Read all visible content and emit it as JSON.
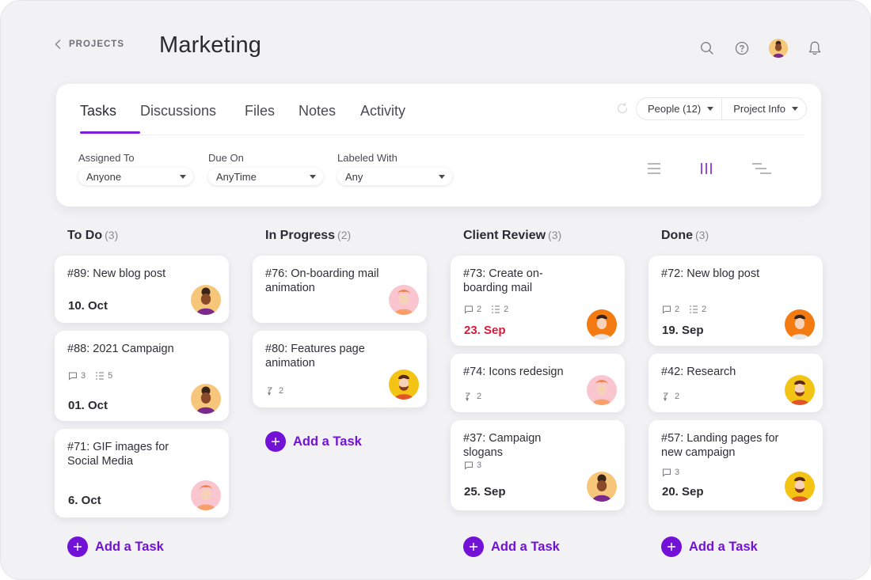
{
  "colors": {
    "accent": "#7212d6",
    "overdue": "#d7193a"
  },
  "header": {
    "back_label": "PROJECTS",
    "title": "Marketing",
    "icons": [
      "search-icon",
      "help-icon",
      "user-avatar",
      "bell-icon"
    ]
  },
  "tabs": [
    {
      "label": "Tasks",
      "active": true
    },
    {
      "label": "Discussions",
      "active": false
    },
    {
      "label": "Files",
      "active": false
    },
    {
      "label": "Notes",
      "active": false
    },
    {
      "label": "Activity",
      "active": false
    }
  ],
  "toolbar": {
    "people": "People (12)",
    "project_info": "Project Info"
  },
  "filters": [
    {
      "label": "Assigned To",
      "value": "Anyone"
    },
    {
      "label": "Due On",
      "value": "AnyTime"
    },
    {
      "label": "Labeled With",
      "value": "Any"
    }
  ],
  "view_modes": [
    "list-view-icon",
    "board-view-icon",
    "timeline-view-icon"
  ],
  "columns": [
    {
      "title": "To Do",
      "count": "(3)",
      "cards": [
        {
          "title": "#89: New blog post",
          "due": "10. Oct"
        },
        {
          "title": "#88: 2021 Campaign",
          "comments": "3",
          "subtasks": "5",
          "due": "01. Oct"
        },
        {
          "title": "#71: GIF images for Social Media",
          "due": "6. Oct"
        }
      ]
    },
    {
      "title": "In Progress",
      "count": "(2)",
      "cards": [
        {
          "title": "#76: On-boarding mail animation"
        },
        {
          "title": "#80: Features page animation",
          "attachments": "2"
        }
      ]
    },
    {
      "title": "Client Review",
      "count": "(3)",
      "cards": [
        {
          "title": "#73: Create on-boarding mail",
          "comments": "2",
          "subtasks": "2",
          "due": "23. Sep"
        },
        {
          "title": "#74: Icons redesign",
          "attachments": "2"
        },
        {
          "title": "#37: Campaign slogans",
          "comments": "3",
          "due": "25. Sep"
        }
      ]
    },
    {
      "title": "Done",
      "count": "(3)",
      "cards": [
        {
          "title": "#72: New blog post",
          "comments": "2",
          "subtasks": "2",
          "due": "19. Sep"
        },
        {
          "title": "#42: Research",
          "attachments": "2"
        },
        {
          "title": "#57: Landing pages for new campaign",
          "comments": "3",
          "due": "20. Sep"
        }
      ]
    }
  ],
  "add_task_label": "Add a Task"
}
